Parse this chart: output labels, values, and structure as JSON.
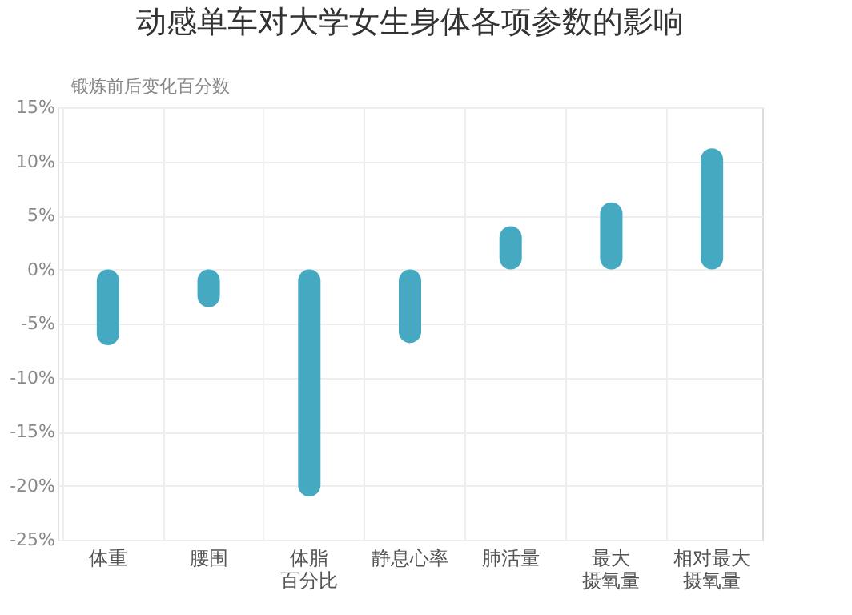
{
  "chart_data": {
    "type": "bar",
    "title": "动感单车对大学女生身体各项参数的影响",
    "ylabel": "锻炼前后变化百分数",
    "categories": [
      "体重",
      "腰围",
      "体脂百分比",
      "静息心率",
      "肺活量",
      "最大摄氧量",
      "相对最大摄氧量"
    ],
    "values": [
      -7,
      -3.5,
      -21,
      -6.8,
      4,
      6.2,
      11.2
    ],
    "color": "#45a9c2",
    "ylim": [
      -25,
      15
    ],
    "yticks": [
      {
        "value": -25,
        "label": "-25%"
      },
      {
        "value": -20,
        "label": "-20%"
      },
      {
        "value": -15,
        "label": "-15%"
      },
      {
        "value": -10,
        "label": "-10%"
      },
      {
        "value": -5,
        "label": "-5%"
      },
      {
        "value": 0,
        "label": "0%"
      },
      {
        "value": 5,
        "label": "5%"
      },
      {
        "value": 10,
        "label": "10%"
      },
      {
        "value": 15,
        "label": "15%"
      }
    ],
    "grid": true
  }
}
